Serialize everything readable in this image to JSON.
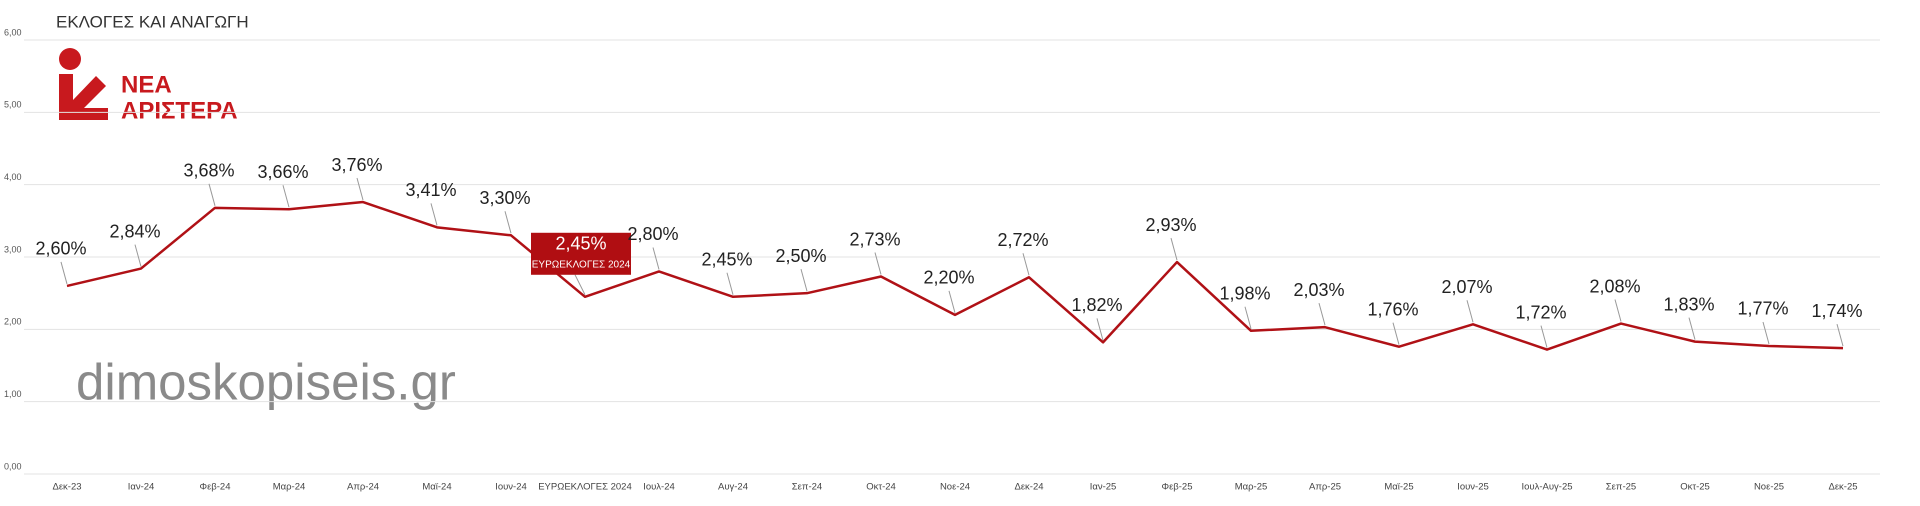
{
  "chart_data": {
    "type": "line",
    "title": "ΕΚΛΟΓΕΣ ΚΑΙ ΑΝΑΓΩΓΗ",
    "logo": {
      "line1": "ΝΕΑ",
      "line2": "ΑΡΙΣΤΕΡΑ"
    },
    "watermark": "dimoskopiseis.gr",
    "categories": [
      "Δεκ-23",
      "Ιαν-24",
      "Φεβ-24",
      "Μαρ-24",
      "Απρ-24",
      "Μαϊ-24",
      "Ιουν-24",
      "ΕΥΡΩΕΚΛΟΓΕΣ 2024",
      "Ιουλ-24",
      "Αυγ-24",
      "Σεπ-24",
      "Οκτ-24",
      "Νοε-24",
      "Δεκ-24",
      "Ιαν-25",
      "Φεβ-25",
      "Μαρ-25",
      "Απρ-25",
      "Μαϊ-25",
      "Ιουν-25",
      "Ιουλ-Αυγ-25",
      "Σεπ-25",
      "Οκτ-25",
      "Νοε-25",
      "Δεκ-25"
    ],
    "values": [
      2.6,
      2.84,
      3.68,
      3.66,
      3.76,
      3.41,
      3.3,
      2.45,
      2.8,
      2.45,
      2.5,
      2.73,
      2.2,
      2.72,
      1.82,
      2.93,
      1.98,
      2.03,
      1.76,
      2.07,
      1.72,
      2.08,
      1.83,
      1.77,
      1.74
    ],
    "value_labels": [
      "2,60%",
      "2,84%",
      "3,68%",
      "3,66%",
      "3,76%",
      "3,41%",
      "3,30%",
      "2,45%",
      "2,80%",
      "2,45%",
      "2,50%",
      "2,73%",
      "2,20%",
      "2,72%",
      "1,82%",
      "2,93%",
      "1,98%",
      "2,03%",
      "1,76%",
      "2,07%",
      "1,72%",
      "2,08%",
      "1,83%",
      "1,77%",
      "1,74%"
    ],
    "color": "#b01116",
    "ylim": [
      0,
      6
    ],
    "yticks": [
      {
        "value": 0,
        "label": "0,00"
      },
      {
        "value": 1,
        "label": "1,00"
      },
      {
        "value": 2,
        "label": "2,00"
      },
      {
        "value": 3,
        "label": "3,00"
      },
      {
        "value": 4,
        "label": "4,00"
      },
      {
        "value": 5,
        "label": "5,00"
      },
      {
        "value": 6,
        "label": "6,00"
      }
    ],
    "grid": true
  }
}
